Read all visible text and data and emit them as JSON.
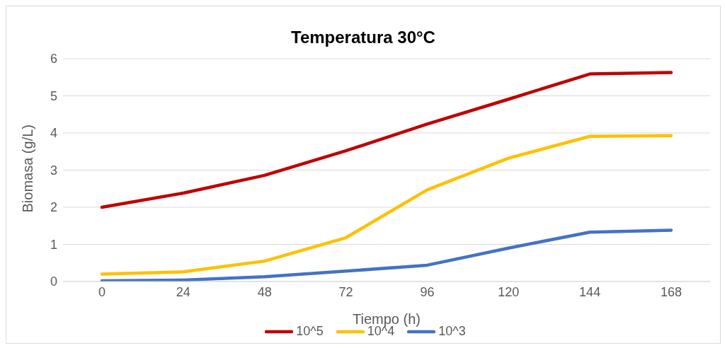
{
  "chart_data": {
    "type": "line",
    "title": "Temperatura 30°C",
    "xlabel": "Tiempo (h)",
    "ylabel": "Biomasa (g/L)",
    "categories": [
      "0",
      "24",
      "48",
      "72",
      "96",
      "120",
      "144",
      "168"
    ],
    "series": [
      {
        "name": "10^5",
        "color": "#c00000",
        "values": [
          2.0,
          2.38,
          2.86,
          3.52,
          4.24,
          4.91,
          5.59,
          5.63
        ]
      },
      {
        "name": "10^4",
        "color": "#ffc000",
        "values": [
          0.2,
          0.26,
          0.55,
          1.18,
          2.47,
          3.32,
          3.91,
          3.93
        ]
      },
      {
        "name": "10^3",
        "color": "#4472c4",
        "values": [
          0.02,
          0.04,
          0.13,
          0.28,
          0.44,
          0.9,
          1.33,
          1.38
        ]
      }
    ],
    "ylim": [
      0,
      6
    ],
    "yticks": [
      0,
      1,
      2,
      3,
      4,
      5,
      6
    ],
    "grid": "y",
    "legend": "bottom",
    "marker": "none",
    "line_style": "solid"
  }
}
